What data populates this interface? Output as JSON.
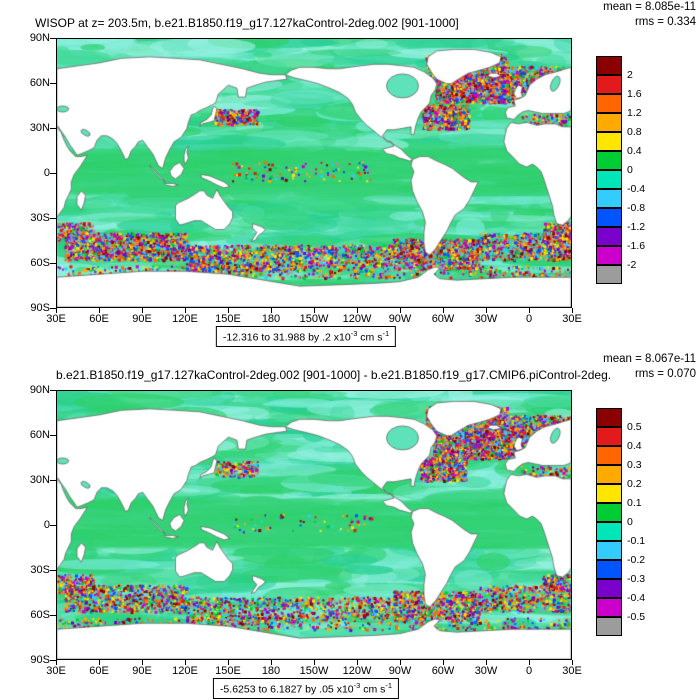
{
  "chart_data": [
    {
      "type": "heatmap",
      "title": "WISOP at z= 203.5m, b.e21.B1850.f19_g17.127kaControl-2deg.002 [901-1000]",
      "stats": {
        "mean": "8.085e-11",
        "rms": "0.334"
      },
      "field_range": {
        "min": -12.316,
        "max": 31.988,
        "contour_interval": 0.2,
        "units": "x10^-3 cm s^-1"
      },
      "colorbar_levels": [
        2,
        1.6,
        1.2,
        0.8,
        0.4,
        0,
        -0.4,
        -0.8,
        -1.2,
        -1.6,
        -2
      ],
      "x_ticks": [
        "30E",
        "60E",
        "90E",
        "120E",
        "150E",
        "180",
        "150W",
        "120W",
        "90W",
        "60W",
        "30W",
        "0",
        "30E"
      ],
      "y_ticks": [
        "90N",
        "60N",
        "30N",
        "0",
        "30S",
        "60S",
        "90S"
      ],
      "projection": "cylindrical-equidistant global map, land masked white",
      "legend_position": "right",
      "grid": false
    },
    {
      "type": "heatmap",
      "title": "b.e21.B1850.f19_g17.127kaControl-2deg.002 [901-1000] - b.e21.B1850.f19_g17.CMIP6.piControl-2deg.",
      "stats": {
        "mean": "8.067e-11",
        "rms": "0.070"
      },
      "field_range": {
        "min": -5.6253,
        "max": 6.1827,
        "contour_interval": 0.05,
        "units": "x10^-3 cm s^-1"
      },
      "colorbar_levels": [
        0.5,
        0.4,
        0.3,
        0.2,
        0.1,
        0,
        -0.1,
        -0.2,
        -0.3,
        -0.4,
        -0.5
      ],
      "x_ticks": [
        "30E",
        "60E",
        "90E",
        "120E",
        "150E",
        "180",
        "150W",
        "120W",
        "90W",
        "60W",
        "30W",
        "0",
        "30E"
      ],
      "y_ticks": [
        "90N",
        "60N",
        "30N",
        "0",
        "30S",
        "60S",
        "90S"
      ],
      "projection": "cylindrical-equidistant global map, land masked white",
      "legend_position": "right",
      "grid": false
    }
  ],
  "panels": [
    {
      "mean_label": "mean = 8.085e-11",
      "rms_label": "rms = 0.334",
      "title": "WISOP at z= 203.5m, b.e21.B1850.f19_g17.127kaControl-2deg.002 [901-1000]",
      "range": {
        "a": "-12.316 to 31.988 by .2 x10",
        "exp1": "-3",
        "b": " cm s",
        "exp2": "-1"
      },
      "colorbar_labels": [
        "2",
        "1.6",
        "1.2",
        "0.8",
        "0.4",
        "0",
        "-0.4",
        "-0.8",
        "-1.2",
        "-1.6",
        "-2"
      ]
    },
    {
      "mean_label": "mean = 8.067e-11",
      "rms_label": "rms = 0.070",
      "title": "b.e21.B1850.f19_g17.127kaControl-2deg.002 [901-1000] - b.e21.B1850.f19_g17.CMIP6.piControl-2deg.",
      "range": {
        "a": "-5.6253 to 6.1827 by .05 x10",
        "exp1": "-3",
        "b": " cm s",
        "exp2": "-1"
      },
      "colorbar_labels": [
        "0.5",
        "0.4",
        "0.3",
        "0.2",
        "0.1",
        "0",
        "-0.1",
        "-0.2",
        "-0.3",
        "-0.4",
        "-0.5"
      ]
    }
  ],
  "axes": {
    "lat_ticks": [
      "90N",
      "60N",
      "30N",
      "0",
      "30S",
      "60S",
      "90S"
    ],
    "lon_ticks": [
      "30E",
      "60E",
      "90E",
      "120E",
      "150E",
      "180",
      "150W",
      "120W",
      "90W",
      "60W",
      "30W",
      "0",
      "30E"
    ]
  },
  "colorbar": {
    "colors": [
      "#8b0000",
      "#e31a1c",
      "#ff6600",
      "#ffaa00",
      "#ffe600",
      "#00cc33",
      "#00e6b8",
      "#33ccff",
      "#0055ff",
      "#7a00cc",
      "#cc00cc",
      "#9c9c9c"
    ]
  },
  "map_palette": {
    "ocean_base": "#5fe2ba",
    "ocean_mottle": [
      "#2fd06a",
      "#27cf95",
      "#7cecd9",
      "#45da9e",
      "#98f2e2",
      "#38d57f"
    ],
    "land": "#ffffff",
    "coastline": "#5a5a5a",
    "speckle": [
      "#8b0000",
      "#e31a1c",
      "#ff6600",
      "#ffe600",
      "#0055ff",
      "#33ccff",
      "#cc00cc",
      "#7a00cc",
      "#9c9c9c",
      "#00cc33",
      "#ffaa00"
    ]
  }
}
